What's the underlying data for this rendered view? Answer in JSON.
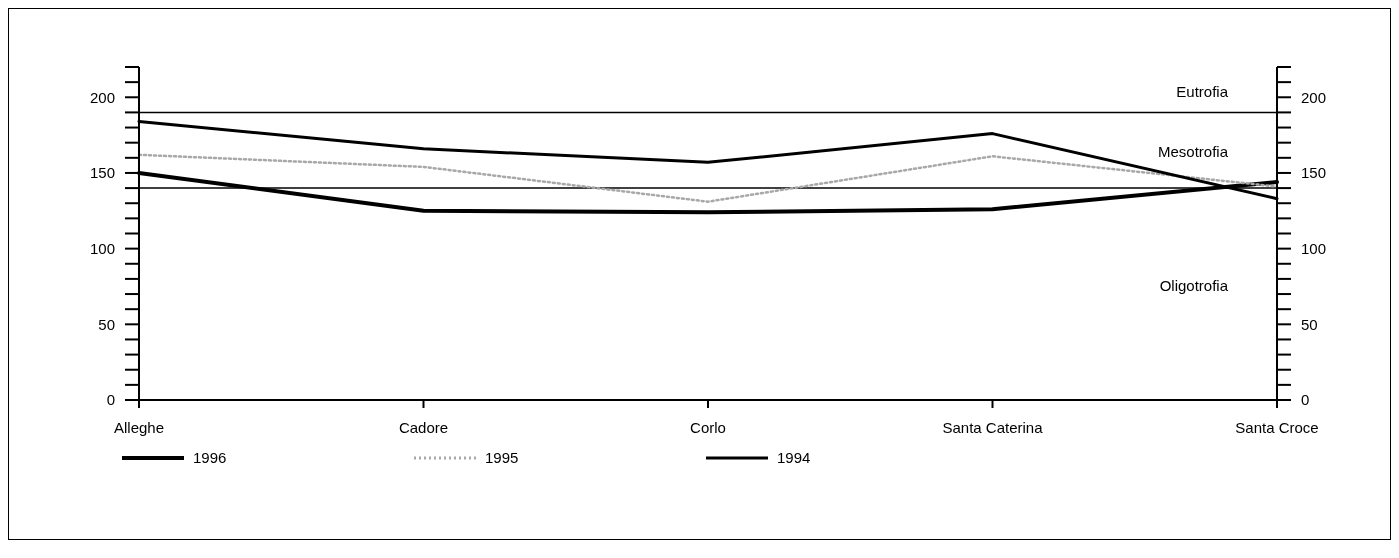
{
  "chart_data": {
    "type": "line",
    "categories": [
      "Alleghe",
      "Cadore",
      "Corlo",
      "Santa Caterina",
      "Santa Croce"
    ],
    "series": [
      {
        "name": "1996",
        "color": "#000000",
        "values": [
          150,
          125,
          124,
          126,
          144
        ]
      },
      {
        "name": "1995",
        "color": "#a8a8a8",
        "line_style": "dotted",
        "values": [
          162,
          154,
          131,
          161,
          141
        ]
      },
      {
        "name": "1994",
        "color": "#000000",
        "values": [
          184,
          166,
          157,
          176,
          133
        ]
      }
    ],
    "ylim": [
      0,
      220
    ],
    "yticks": [
      0,
      {
        "value": 10,
        "label": null
      },
      {
        "value": 20,
        "label": null
      },
      {
        "value": 30,
        "label": null
      },
      {
        "value": 40,
        "label": null
      },
      50,
      {
        "value": 60,
        "label": null
      },
      {
        "value": 70,
        "label": null
      },
      {
        "value": 80,
        "label": null
      },
      {
        "value": 90,
        "label": null
      },
      100,
      {
        "value": 110,
        "label": null
      },
      {
        "value": 120,
        "label": null
      },
      {
        "value": 130,
        "label": null
      },
      {
        "value": 140,
        "label": null
      },
      150,
      {
        "value": 160,
        "label": null
      },
      {
        "value": 170,
        "label": null
      },
      {
        "value": 180,
        "label": null
      },
      {
        "value": 190,
        "label": null
      },
      200,
      {
        "value": 210,
        "label": null
      },
      {
        "value": 220,
        "label": null
      }
    ],
    "y2lim": [
      0,
      220
    ],
    "y2ticks": [
      0,
      {
        "value": 10,
        "label": null
      },
      {
        "value": 20,
        "label": null
      },
      {
        "value": 30,
        "label": null
      },
      {
        "value": 40,
        "label": null
      },
      50,
      {
        "value": 60,
        "label": null
      },
      {
        "value": 70,
        "label": null
      },
      {
        "value": 80,
        "label": null
      },
      {
        "value": 90,
        "label": null
      },
      100,
      {
        "value": 110,
        "label": null
      },
      {
        "value": 120,
        "label": null
      },
      {
        "value": 130,
        "label": null
      },
      {
        "value": 140,
        "label": null
      },
      150,
      {
        "value": 160,
        "label": null
      },
      {
        "value": 170,
        "label": null
      },
      {
        "value": 180,
        "label": null
      },
      {
        "value": 190,
        "label": null
      },
      200,
      {
        "value": 210,
        "label": null
      },
      {
        "value": 220,
        "label": null
      }
    ],
    "ref_lines": [
      {
        "axis": "y",
        "value": 190,
        "color": "#000000"
      },
      {
        "axis": "y",
        "value": 140,
        "color": "#000000"
      }
    ],
    "annotations": [
      "Eutrofia",
      "Mesotrofia",
      "Oligotrofia"
    ],
    "grid": false,
    "marker": "none",
    "line_style": "solid",
    "legend": "bottom left"
  }
}
